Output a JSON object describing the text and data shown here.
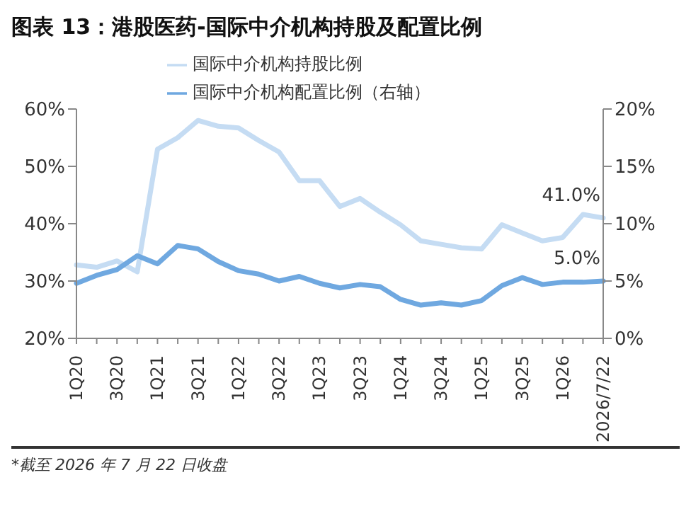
{
  "chart_data": {
    "type": "line",
    "title": "图表 13：港股医药-国际中介机构持股及配置比例",
    "categories": [
      "1Q20",
      null,
      "3Q20",
      null,
      "1Q21",
      null,
      "3Q21",
      null,
      "1Q22",
      null,
      "3Q22",
      null,
      "1Q23",
      null,
      "3Q23",
      null,
      "1Q24",
      null,
      "3Q24",
      null,
      "1Q25",
      null,
      "3Q25",
      null,
      "1Q26",
      null,
      "2026/7/22"
    ],
    "series": [
      {
        "name": "国际中介机构持股比例",
        "color": "#c5dcf3",
        "values": [
          32.8,
          32.4,
          33.5,
          31.6,
          53,
          55,
          58,
          57,
          56.7,
          54.5,
          52.5,
          47.5,
          47.5,
          43,
          44.4,
          42,
          39.8,
          37,
          36.4,
          35.8,
          35.6,
          39.8,
          38.4,
          37,
          37.6,
          41.6,
          41.0
        ],
        "value_labels": [
          null,
          null,
          null,
          null,
          null,
          null,
          null,
          null,
          null,
          null,
          null,
          null,
          null,
          null,
          null,
          null,
          null,
          null,
          null,
          null,
          null,
          null,
          null,
          null,
          null,
          null,
          "41.0%"
        ]
      },
      {
        "name": "国际中介机构配置比例（右轴）",
        "color": "#6fa8e0",
        "axis": "y2",
        "values": [
          4.8,
          5.5,
          6,
          7.2,
          6.5,
          8.1,
          7.8,
          6.7,
          5.9,
          5.6,
          5.0,
          5.4,
          4.8,
          4.4,
          4.7,
          4.5,
          3.4,
          2.9,
          3.1,
          2.9,
          3.3,
          4.6,
          5.3,
          4.7,
          4.9,
          4.9,
          5.0
        ],
        "value_labels": [
          null,
          null,
          null,
          null,
          null,
          null,
          null,
          null,
          null,
          null,
          null,
          null,
          null,
          null,
          null,
          null,
          null,
          null,
          null,
          null,
          null,
          null,
          null,
          null,
          null,
          null,
          "5.0%"
        ]
      }
    ],
    "ylim": [
      20,
      60
    ],
    "yticks": [
      {
        "value": 20,
        "label": "20%"
      },
      {
        "value": 30,
        "label": "30%"
      },
      {
        "value": 40,
        "label": "40%"
      },
      {
        "value": 50,
        "label": "50%"
      },
      {
        "value": 60,
        "label": "60%"
      }
    ],
    "y2lim": [
      0,
      20
    ],
    "y2ticks": [
      {
        "value": 0,
        "label": "0%"
      },
      {
        "value": 5,
        "label": "5%"
      },
      {
        "value": 10,
        "label": "10%"
      },
      {
        "value": 15,
        "label": "15%"
      },
      {
        "value": 20,
        "label": "20%"
      }
    ],
    "legend": "top",
    "grid": false,
    "marker": "none",
    "line_style": "solid",
    "annotations": [
      "*截至 2026 年 7 月 22 日收盘"
    ]
  }
}
